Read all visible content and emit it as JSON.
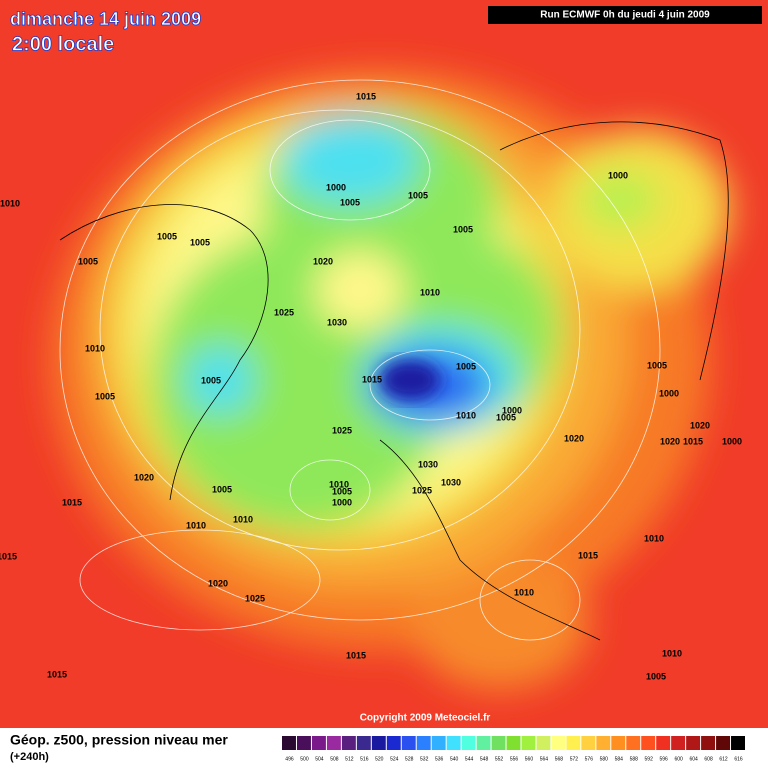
{
  "header": {
    "title": "dimanche 14 juin 2009",
    "time": "2:00 locale",
    "run": "Run ECMWF 0h du jeudi 4 juin 2009"
  },
  "copyright": "Copyright 2009 Meteociel.fr",
  "footer": {
    "caption": "Géop. z500, pression niveau mer",
    "lead": "(+240h)"
  },
  "legend": {
    "values": [
      496,
      500,
      504,
      508,
      512,
      516,
      520,
      524,
      528,
      532,
      536,
      540,
      544,
      548,
      552,
      556,
      560,
      564,
      568,
      572,
      576,
      580,
      584,
      588,
      592,
      596,
      600,
      604,
      608,
      612,
      616
    ],
    "colors": [
      "#2a0a30",
      "#4a0f5a",
      "#7a1a8a",
      "#9a2aa0",
      "#5a2080",
      "#3a2a90",
      "#1a1aa0",
      "#1a2ad0",
      "#2a50f0",
      "#2a80ff",
      "#30b0ff",
      "#40e0ff",
      "#50ffe0",
      "#60f0a0",
      "#70e060",
      "#80e030",
      "#a0f040",
      "#d0f060",
      "#ffff80",
      "#fff050",
      "#ffd040",
      "#ffb030",
      "#ff9020",
      "#ff7020",
      "#ff5020",
      "#f03020",
      "#d02020",
      "#b01818",
      "#901010",
      "#600808",
      "#000000"
    ]
  },
  "isobar_labels": [
    "1015",
    "1000",
    "1000",
    "1005",
    "1005",
    "1010",
    "1005",
    "1005",
    "1005",
    "1005",
    "1020",
    "1010",
    "1025",
    "1030",
    "1010",
    "1005",
    "1015",
    "1005",
    "1005",
    "1000",
    "1005",
    "1010",
    "1000",
    "1005",
    "1020",
    "1020",
    "1015",
    "1000",
    "1025",
    "1020",
    "1030",
    "1020",
    "1010",
    "1005",
    "1030",
    "1025",
    "1005",
    "1000",
    "1015",
    "1010",
    "1010",
    "1010",
    "1015",
    "1015",
    "1010",
    "1020",
    "1025",
    "1015",
    "1010",
    "1015",
    "1005"
  ]
}
